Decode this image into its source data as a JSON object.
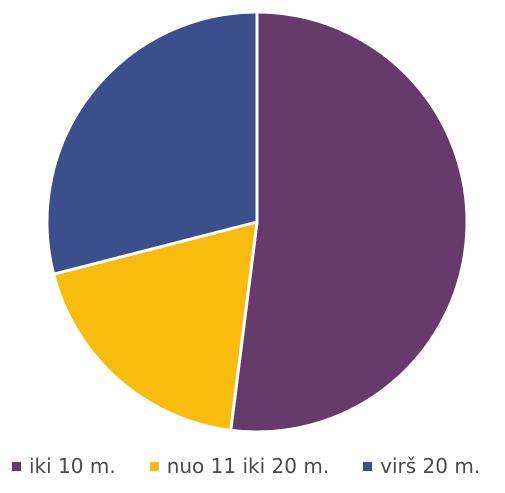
{
  "chart_data": {
    "type": "pie",
    "title": "",
    "start_angle_deg": 0,
    "slices": [
      {
        "label": "iki 10 m.",
        "value": 52,
        "color": "#663A6A"
      },
      {
        "label": "nuo 11 iki 20 m.",
        "value": 19,
        "color": "#F7BC0E"
      },
      {
        "label": "virš 20 m.",
        "value": 29,
        "color": "#3A4F8C"
      }
    ],
    "legend": {
      "placement": "bottom",
      "items": [
        {
          "label": "iki 10 m.",
          "color": "#663A6A"
        },
        {
          "label": "nuo 11 iki 20 m.",
          "color": "#F7BC0E"
        },
        {
          "label": "virš 20 m.",
          "color": "#3A4F8C"
        }
      ]
    }
  }
}
